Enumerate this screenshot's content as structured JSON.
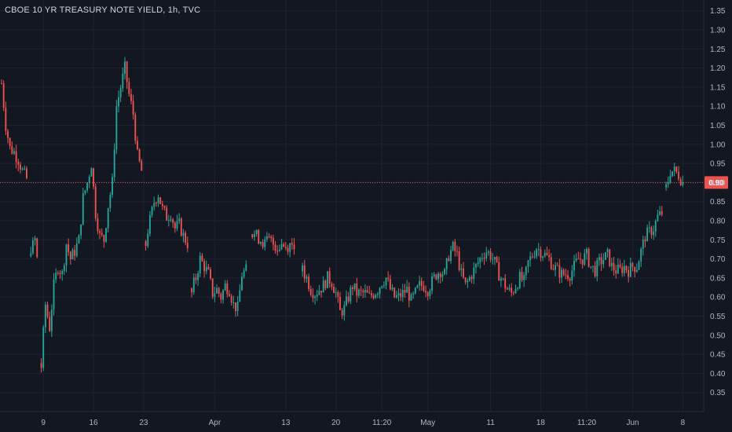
{
  "chart_data": {
    "type": "candlestick",
    "title": "CBOE 10 YR TREASURY NOTE YIELD, 1h, TVC",
    "ylim": [
      0.3,
      1.37
    ],
    "y_ticks": [
      "1.35",
      "1.30",
      "1.25",
      "1.20",
      "1.15",
      "1.10",
      "1.05",
      "1.00",
      "0.95",
      "0.90",
      "0.85",
      "0.80",
      "0.75",
      "0.70",
      "0.65",
      "0.60",
      "0.55",
      "0.50",
      "0.45",
      "0.40",
      "0.35"
    ],
    "x_ticks": [
      {
        "label": "9",
        "bar": 20
      },
      {
        "label": "16",
        "bar": 44
      },
      {
        "label": "23",
        "bar": 68
      },
      {
        "label": "Apr",
        "bar": 102
      },
      {
        "label": "13",
        "bar": 136
      },
      {
        "label": "20",
        "bar": 160
      },
      {
        "label": "11:20",
        "bar": 182
      },
      {
        "label": "May",
        "bar": 204
      },
      {
        "label": "11",
        "bar": 234
      },
      {
        "label": "18",
        "bar": 258
      },
      {
        "label": "11:20",
        "bar": 280
      },
      {
        "label": "Jun",
        "bar": 302
      },
      {
        "label": "8",
        "bar": 326
      }
    ],
    "last_price": {
      "value": 0.9,
      "label": "0.90"
    },
    "series_colors": {
      "up": "#26a69a",
      "down": "#ef5350",
      "grid": "#1f2330",
      "price_line": "#ef5350",
      "background": "#131722"
    },
    "grid": true,
    "num_bars": 330,
    "closes": [
      {
        "bar": 0,
        "y": 1.16
      },
      {
        "bar": 2,
        "y": 1.05
      },
      {
        "bar": 4,
        "y": 0.99
      },
      {
        "bar": 6,
        "y": 0.98
      },
      {
        "bar": 8,
        "y": 0.96
      },
      {
        "bar": 10,
        "y": 0.93
      },
      {
        "bar": 12,
        "y": 0.91
      },
      {
        "bar": 14,
        "y": 0.72
      },
      {
        "bar": 16,
        "y": 0.75
      },
      {
        "bar": 17,
        "y": 0.7
      },
      {
        "bar": 19,
        "y": 0.43
      },
      {
        "bar": 21,
        "y": 0.58
      },
      {
        "bar": 23,
        "y": 0.52
      },
      {
        "bar": 25,
        "y": 0.63
      },
      {
        "bar": 27,
        "y": 0.68
      },
      {
        "bar": 29,
        "y": 0.66
      },
      {
        "bar": 31,
        "y": 0.74
      },
      {
        "bar": 33,
        "y": 0.7
      },
      {
        "bar": 35,
        "y": 0.72
      },
      {
        "bar": 37,
        "y": 0.75
      },
      {
        "bar": 39,
        "y": 0.86
      },
      {
        "bar": 41,
        "y": 0.9
      },
      {
        "bar": 43,
        "y": 0.95
      },
      {
        "bar": 45,
        "y": 0.82
      },
      {
        "bar": 47,
        "y": 0.76
      },
      {
        "bar": 49,
        "y": 0.75
      },
      {
        "bar": 51,
        "y": 0.84
      },
      {
        "bar": 53,
        "y": 0.9
      },
      {
        "bar": 55,
        "y": 1.1
      },
      {
        "bar": 57,
        "y": 1.15
      },
      {
        "bar": 59,
        "y": 1.2
      },
      {
        "bar": 61,
        "y": 1.13
      },
      {
        "bar": 63,
        "y": 1.08
      },
      {
        "bar": 65,
        "y": 0.97
      },
      {
        "bar": 67,
        "y": 0.93
      },
      {
        "bar": 69,
        "y": 0.75
      },
      {
        "bar": 71,
        "y": 0.8
      },
      {
        "bar": 73,
        "y": 0.85
      },
      {
        "bar": 75,
        "y": 0.87
      },
      {
        "bar": 77,
        "y": 0.83
      },
      {
        "bar": 79,
        "y": 0.81
      },
      {
        "bar": 81,
        "y": 0.82
      },
      {
        "bar": 83,
        "y": 0.78
      },
      {
        "bar": 85,
        "y": 0.79
      },
      {
        "bar": 87,
        "y": 0.76
      },
      {
        "bar": 89,
        "y": 0.74
      },
      {
        "bar": 91,
        "y": 0.62
      },
      {
        "bar": 93,
        "y": 0.65
      },
      {
        "bar": 95,
        "y": 0.7
      },
      {
        "bar": 97,
        "y": 0.68
      },
      {
        "bar": 99,
        "y": 0.66
      },
      {
        "bar": 101,
        "y": 0.61
      },
      {
        "bar": 103,
        "y": 0.62
      },
      {
        "bar": 105,
        "y": 0.6
      },
      {
        "bar": 107,
        "y": 0.63
      },
      {
        "bar": 109,
        "y": 0.62
      },
      {
        "bar": 111,
        "y": 0.58
      },
      {
        "bar": 113,
        "y": 0.57
      },
      {
        "bar": 115,
        "y": 0.66
      },
      {
        "bar": 117,
        "y": 0.67
      },
      {
        "bar": 120,
        "y": 0.77
      },
      {
        "bar": 122,
        "y": 0.76
      },
      {
        "bar": 124,
        "y": 0.75
      },
      {
        "bar": 126,
        "y": 0.74
      },
      {
        "bar": 128,
        "y": 0.75
      },
      {
        "bar": 130,
        "y": 0.74
      },
      {
        "bar": 132,
        "y": 0.73
      },
      {
        "bar": 134,
        "y": 0.74
      },
      {
        "bar": 136,
        "y": 0.73
      },
      {
        "bar": 138,
        "y": 0.74
      },
      {
        "bar": 140,
        "y": 0.74
      },
      {
        "bar": 144,
        "y": 0.67
      },
      {
        "bar": 146,
        "y": 0.65
      },
      {
        "bar": 148,
        "y": 0.62
      },
      {
        "bar": 150,
        "y": 0.61
      },
      {
        "bar": 152,
        "y": 0.62
      },
      {
        "bar": 154,
        "y": 0.63
      },
      {
        "bar": 156,
        "y": 0.65
      },
      {
        "bar": 158,
        "y": 0.64
      },
      {
        "bar": 160,
        "y": 0.61
      },
      {
        "bar": 162,
        "y": 0.56
      },
      {
        "bar": 164,
        "y": 0.57
      },
      {
        "bar": 166,
        "y": 0.6
      },
      {
        "bar": 168,
        "y": 0.63
      },
      {
        "bar": 170,
        "y": 0.61
      },
      {
        "bar": 172,
        "y": 0.61
      },
      {
        "bar": 174,
        "y": 0.61
      },
      {
        "bar": 176,
        "y": 0.6
      },
      {
        "bar": 178,
        "y": 0.61
      },
      {
        "bar": 180,
        "y": 0.62
      },
      {
        "bar": 182,
        "y": 0.64
      },
      {
        "bar": 184,
        "y": 0.65
      },
      {
        "bar": 186,
        "y": 0.62
      },
      {
        "bar": 188,
        "y": 0.6
      },
      {
        "bar": 190,
        "y": 0.6
      },
      {
        "bar": 192,
        "y": 0.61
      },
      {
        "bar": 194,
        "y": 0.62
      },
      {
        "bar": 196,
        "y": 0.59
      },
      {
        "bar": 198,
        "y": 0.61
      },
      {
        "bar": 200,
        "y": 0.63
      },
      {
        "bar": 202,
        "y": 0.63
      },
      {
        "bar": 204,
        "y": 0.62
      },
      {
        "bar": 206,
        "y": 0.64
      },
      {
        "bar": 208,
        "y": 0.66
      },
      {
        "bar": 210,
        "y": 0.67
      },
      {
        "bar": 212,
        "y": 0.66
      },
      {
        "bar": 214,
        "y": 0.71
      },
      {
        "bar": 216,
        "y": 0.73
      },
      {
        "bar": 218,
        "y": 0.71
      },
      {
        "bar": 220,
        "y": 0.66
      },
      {
        "bar": 222,
        "y": 0.63
      },
      {
        "bar": 224,
        "y": 0.65
      },
      {
        "bar": 226,
        "y": 0.67
      },
      {
        "bar": 228,
        "y": 0.69
      },
      {
        "bar": 230,
        "y": 0.71
      },
      {
        "bar": 232,
        "y": 0.72
      },
      {
        "bar": 234,
        "y": 0.71
      },
      {
        "bar": 236,
        "y": 0.69
      },
      {
        "bar": 238,
        "y": 0.66
      },
      {
        "bar": 240,
        "y": 0.64
      },
      {
        "bar": 242,
        "y": 0.62
      },
      {
        "bar": 244,
        "y": 0.61
      },
      {
        "bar": 246,
        "y": 0.63
      },
      {
        "bar": 248,
        "y": 0.65
      },
      {
        "bar": 250,
        "y": 0.64
      },
      {
        "bar": 252,
        "y": 0.69
      },
      {
        "bar": 254,
        "y": 0.71
      },
      {
        "bar": 256,
        "y": 0.73
      },
      {
        "bar": 258,
        "y": 0.72
      },
      {
        "bar": 260,
        "y": 0.71
      },
      {
        "bar": 262,
        "y": 0.7
      },
      {
        "bar": 264,
        "y": 0.68
      },
      {
        "bar": 266,
        "y": 0.67
      },
      {
        "bar": 268,
        "y": 0.66
      },
      {
        "bar": 270,
        "y": 0.66
      },
      {
        "bar": 272,
        "y": 0.66
      },
      {
        "bar": 276,
        "y": 0.7
      },
      {
        "bar": 278,
        "y": 0.7
      },
      {
        "bar": 280,
        "y": 0.71
      },
      {
        "bar": 282,
        "y": 0.68
      },
      {
        "bar": 284,
        "y": 0.67
      },
      {
        "bar": 286,
        "y": 0.69
      },
      {
        "bar": 288,
        "y": 0.7
      },
      {
        "bar": 290,
        "y": 0.71
      },
      {
        "bar": 292,
        "y": 0.68
      },
      {
        "bar": 294,
        "y": 0.67
      },
      {
        "bar": 296,
        "y": 0.67
      },
      {
        "bar": 298,
        "y": 0.68
      },
      {
        "bar": 300,
        "y": 0.67
      },
      {
        "bar": 302,
        "y": 0.68
      },
      {
        "bar": 304,
        "y": 0.68
      },
      {
        "bar": 306,
        "y": 0.72
      },
      {
        "bar": 308,
        "y": 0.76
      },
      {
        "bar": 310,
        "y": 0.77
      },
      {
        "bar": 312,
        "y": 0.78
      },
      {
        "bar": 314,
        "y": 0.81
      },
      {
        "bar": 316,
        "y": 0.82
      },
      {
        "bar": 318,
        "y": 0.88
      },
      {
        "bar": 320,
        "y": 0.93
      },
      {
        "bar": 322,
        "y": 0.93
      },
      {
        "bar": 324,
        "y": 0.92
      },
      {
        "bar": 326,
        "y": 0.9
      }
    ],
    "gaps": [
      [
        12,
        14
      ],
      [
        17,
        19
      ],
      [
        67,
        69
      ],
      [
        89,
        91
      ],
      [
        117,
        120
      ],
      [
        140,
        144
      ],
      [
        316,
        318
      ]
    ]
  }
}
